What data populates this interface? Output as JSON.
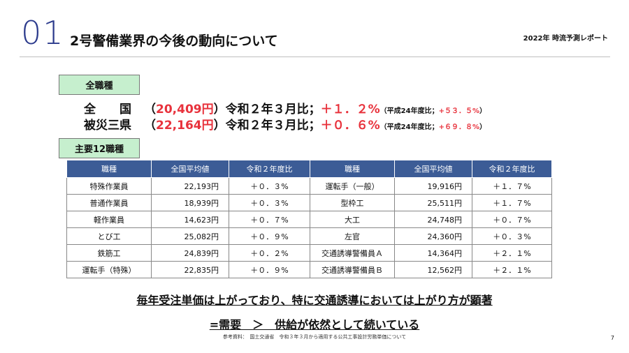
{
  "header": {
    "section_number": "01",
    "title": "2号警備業界の今後の動向について",
    "report_label": "2022年 時流予測レポート"
  },
  "all_jobs": {
    "tag": "全職種",
    "rows": [
      {
        "region": "全　　国",
        "open_paren": "（",
        "wage": "20,409円",
        "middle": "）令和２年３月比；",
        "change": "＋１．２%",
        "prefix": "（平成24年度比；",
        "change_h24": "+５３．５%",
        "close": "）"
      },
      {
        "region": "被災三県",
        "open_paren": "（",
        "wage": "22,164円",
        "middle": "）令和２年３月比；",
        "change": "＋０．６%",
        "prefix": "（平成24年度比；",
        "change_h24": "+６９．８%",
        "close": "）"
      }
    ]
  },
  "major_jobs": {
    "tag": "主要12職種",
    "headers": [
      "職種",
      "全国平均値",
      "令和２年度比",
      "職種",
      "全国平均値",
      "令和２年度比"
    ],
    "rows": [
      [
        "特殊作業員",
        "22,193円",
        "＋０．３%",
        "運転手（一般）",
        "19,916円",
        "＋１．７%"
      ],
      [
        "普通作業員",
        "18,939円",
        "＋０．３%",
        "型枠工",
        "25,511円",
        "＋１．７%"
      ],
      [
        "軽作業員",
        "14,623円",
        "＋０．７%",
        "大工",
        "24,748円",
        "＋０．７%"
      ],
      [
        "とび工",
        "25,082円",
        "＋０．９%",
        "左官",
        "24,360円",
        "＋０．３%"
      ],
      [
        "鉄筋工",
        "24,839円",
        "＋０．２%",
        "交通誘導警備員Ａ",
        "14,364円",
        "＋２．１%"
      ],
      [
        "運転手（特殊）",
        "22,835円",
        "＋０．９%",
        "交通誘導警備員Ｂ",
        "12,562円",
        "＋２．１%"
      ]
    ]
  },
  "conclusion": {
    "line1": "毎年受注単価は上がっており、特に交通誘導においては上がり方が顕著",
    "line2": "=需要　＞　供給が依然として続いている"
  },
  "source": "参考資料：　国土交通省　令和３年３月から適用する公共工事設計労務単価について",
  "page_number": "7",
  "colors": {
    "accent_blue": "#2b3a8c",
    "table_header": "#3c5c96",
    "tag_green": "#c6efce",
    "highlight_red": "#e8323c"
  }
}
